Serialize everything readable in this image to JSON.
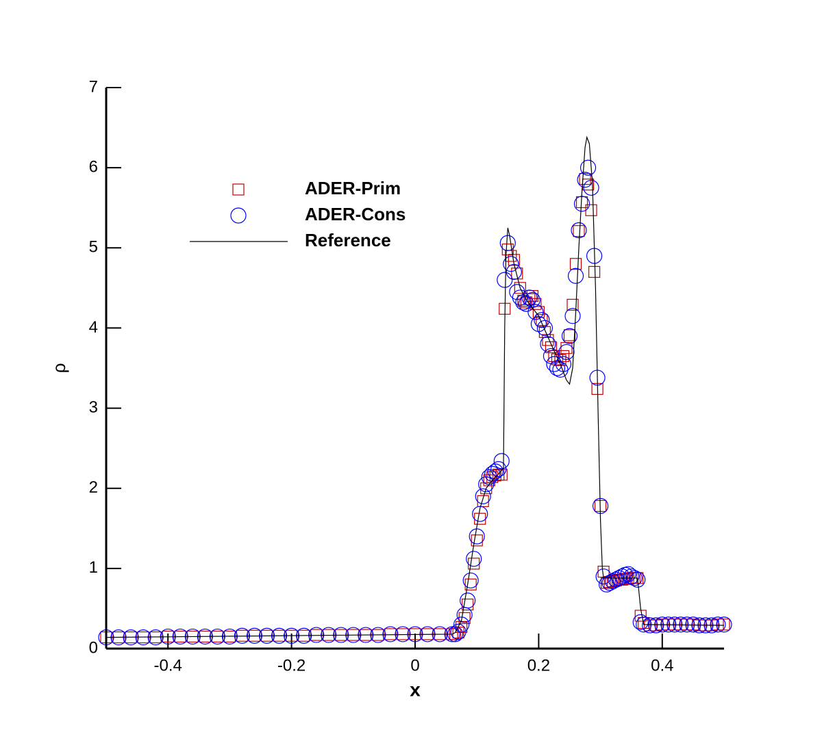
{
  "chart_data": {
    "type": "scatter",
    "xlabel": "x",
    "ylabel": "ρ",
    "xlim": [
      -0.5,
      0.5
    ],
    "ylim": [
      0,
      7
    ],
    "xticks": [
      -0.4,
      -0.2,
      0,
      0.2,
      0.4
    ],
    "yticks": [
      0,
      1,
      2,
      3,
      4,
      5,
      6,
      7
    ],
    "legend": "upper left",
    "x": [
      -0.5,
      -0.48,
      -0.46,
      -0.44,
      -0.42,
      -0.4,
      -0.38,
      -0.36,
      -0.34,
      -0.32,
      -0.3,
      -0.28,
      -0.26,
      -0.24,
      -0.22,
      -0.2,
      -0.18,
      -0.16,
      -0.14,
      -0.12,
      -0.1,
      -0.08,
      -0.06,
      -0.04,
      -0.02,
      0,
      0.02,
      0.04,
      0.06,
      0.065,
      0.07,
      0.075,
      0.08,
      0.085,
      0.09,
      0.095,
      0.1,
      0.105,
      0.11,
      0.115,
      0.12,
      0.125,
      0.13,
      0.135,
      0.14,
      0.145,
      0.15,
      0.155,
      0.16,
      0.165,
      0.17,
      0.175,
      0.18,
      0.185,
      0.19,
      0.195,
      0.2,
      0.205,
      0.21,
      0.215,
      0.22,
      0.225,
      0.23,
      0.235,
      0.24,
      0.245,
      0.25,
      0.255,
      0.26,
      0.265,
      0.27,
      0.275,
      0.28,
      0.285,
      0.29,
      0.295,
      0.3,
      0.305,
      0.31,
      0.315,
      0.32,
      0.325,
      0.33,
      0.335,
      0.34,
      0.345,
      0.35,
      0.355,
      0.36,
      0.365,
      0.37,
      0.38,
      0.39,
      0.4,
      0.41,
      0.42,
      0.43,
      0.44,
      0.45,
      0.46,
      0.47,
      0.48,
      0.49,
      0.5
    ],
    "series": [
      {
        "name": "ADER-Prim",
        "marker": "square",
        "color": "#c00000",
        "values": [
          0.14,
          0.14,
          0.14,
          0.14,
          0.14,
          0.15,
          0.15,
          0.15,
          0.15,
          0.15,
          0.15,
          0.16,
          0.16,
          0.16,
          0.16,
          0.16,
          0.16,
          0.17,
          0.17,
          0.17,
          0.17,
          0.17,
          0.17,
          0.18,
          0.18,
          0.18,
          0.18,
          0.18,
          0.18,
          0.18,
          0.2,
          0.27,
          0.38,
          0.55,
          0.8,
          1.06,
          1.35,
          1.62,
          1.84,
          2.0,
          2.1,
          2.14,
          2.16,
          2.17,
          2.17,
          4.24,
          4.98,
          4.9,
          4.85,
          4.68,
          4.5,
          4.34,
          4.32,
          4.36,
          4.4,
          4.3,
          4.2,
          4.1,
          3.95,
          3.85,
          3.76,
          3.65,
          3.61,
          3.6,
          3.65,
          3.75,
          3.91,
          4.29,
          4.8,
          5.21,
          5.57,
          5.86,
          5.79,
          5.47,
          4.7,
          3.24,
          1.78,
          0.96,
          0.82,
          0.83,
          0.84,
          0.85,
          0.86,
          0.86,
          0.87,
          0.87,
          0.88,
          0.88,
          0.88,
          0.41,
          0.32,
          0.29,
          0.29,
          0.3,
          0.3,
          0.3,
          0.3,
          0.3,
          0.3,
          0.29,
          0.29,
          0.29,
          0.3,
          0.3
        ]
      },
      {
        "name": "ADER-Cons",
        "marker": "circle",
        "color": "#0000ff",
        "values": [
          0.14,
          0.14,
          0.14,
          0.14,
          0.14,
          0.15,
          0.15,
          0.15,
          0.15,
          0.15,
          0.15,
          0.16,
          0.16,
          0.16,
          0.16,
          0.16,
          0.16,
          0.17,
          0.17,
          0.17,
          0.17,
          0.17,
          0.17,
          0.18,
          0.18,
          0.18,
          0.18,
          0.18,
          0.18,
          0.18,
          0.21,
          0.3,
          0.42,
          0.6,
          0.85,
          1.12,
          1.4,
          1.68,
          1.9,
          2.05,
          2.14,
          2.18,
          2.21,
          2.24,
          2.34,
          4.6,
          5.06,
          4.8,
          4.7,
          4.45,
          4.38,
          4.32,
          4.3,
          4.38,
          4.35,
          4.2,
          4.05,
          4.1,
          4.0,
          3.8,
          3.65,
          3.55,
          3.5,
          3.48,
          3.55,
          3.7,
          3.9,
          4.15,
          4.65,
          5.22,
          5.55,
          5.85,
          6.0,
          5.75,
          4.9,
          3.38,
          1.78,
          0.9,
          0.8,
          0.82,
          0.84,
          0.86,
          0.88,
          0.9,
          0.92,
          0.93,
          0.9,
          0.88,
          0.86,
          0.33,
          0.3,
          0.29,
          0.29,
          0.3,
          0.3,
          0.3,
          0.3,
          0.3,
          0.3,
          0.29,
          0.29,
          0.29,
          0.3,
          0.3
        ]
      },
      {
        "name": "Reference",
        "marker": "line",
        "color": "#000000",
        "x": [
          -0.5,
          0.06,
          0.065,
          0.075,
          0.085,
          0.095,
          0.105,
          0.115,
          0.125,
          0.135,
          0.143,
          0.145,
          0.147,
          0.15,
          0.153,
          0.16,
          0.17,
          0.18,
          0.2,
          0.22,
          0.235,
          0.245,
          0.25,
          0.255,
          0.26,
          0.265,
          0.27,
          0.275,
          0.278,
          0.282,
          0.287,
          0.292,
          0.296,
          0.3,
          0.303,
          0.305,
          0.36,
          0.365,
          0.37,
          0.5
        ],
        "values": [
          0.14,
          0.18,
          0.2,
          0.35,
          0.8,
          1.3,
          1.75,
          2.0,
          2.1,
          2.18,
          2.25,
          4.0,
          4.9,
          5.25,
          5.15,
          4.8,
          4.5,
          4.35,
          4.15,
          3.8,
          3.55,
          3.35,
          3.3,
          3.5,
          4.2,
          5.0,
          5.7,
          6.25,
          6.38,
          6.3,
          5.8,
          4.5,
          3.0,
          1.6,
          1.0,
          0.88,
          0.88,
          0.5,
          0.3,
          0.29
        ]
      }
    ]
  }
}
